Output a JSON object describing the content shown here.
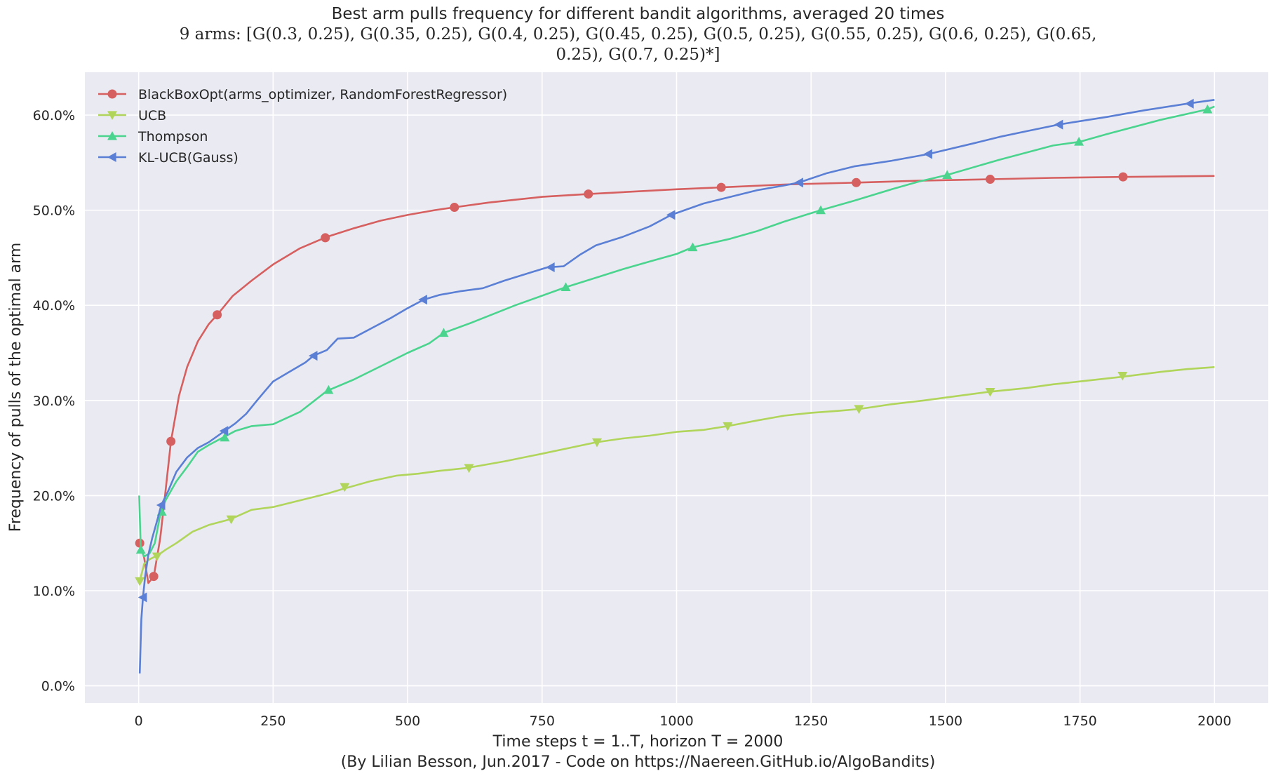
{
  "chart_data": {
    "type": "line",
    "title": "Best arm pulls frequency for different bandit algorithms, averaged 20 times",
    "subtitle_line1": "9 arms: [G(0.3, 0.25), G(0.35, 0.25), G(0.4, 0.25), G(0.45, 0.25), G(0.5, 0.25), G(0.55, 0.25), G(0.6, 0.25), G(0.65,",
    "subtitle_line2": "0.25), G(0.7, 0.25)*]",
    "xlabel": "Time steps t = 1..T, horizon T = 2000",
    "xlabel_line2": "(By Lilian Besson, Jun.2017 - Code on https://Naereen.GitHub.io/AlgoBandits)",
    "ylabel": "Frequency of pulls of the optimal arm",
    "xlim": [
      -100,
      2100
    ],
    "ylim": [
      -1.8,
      64.5
    ],
    "xticks": [
      0,
      250,
      500,
      750,
      1000,
      1250,
      1500,
      1750,
      2000
    ],
    "xtick_labels": [
      "0",
      "250",
      "500",
      "750",
      "1000",
      "1250",
      "1500",
      "1750",
      "2000"
    ],
    "yticks": [
      0,
      10,
      20,
      30,
      40,
      50,
      60
    ],
    "ytick_labels": [
      "0.0%",
      "10.0%",
      "20.0%",
      "30.0%",
      "40.0%",
      "50.0%",
      "60.0%"
    ],
    "grid": true,
    "legend_position": "top-left",
    "series": [
      {
        "name": "BlackBoxOpt(arms_optimizer, RandomForestRegressor)",
        "color": "#d65f5f",
        "marker": "circle",
        "points": [
          [
            2,
            15.0
          ],
          [
            10,
            13.5
          ],
          [
            18,
            10.8
          ],
          [
            28,
            11.5
          ],
          [
            40,
            15.5
          ],
          [
            50,
            20.5
          ],
          [
            60,
            25.7
          ],
          [
            75,
            30.5
          ],
          [
            90,
            33.5
          ],
          [
            110,
            36.2
          ],
          [
            130,
            38.0
          ],
          [
            146,
            39.0
          ],
          [
            175,
            41.0
          ],
          [
            210,
            42.6
          ],
          [
            250,
            44.3
          ],
          [
            300,
            46.0
          ],
          [
            350,
            47.2
          ],
          [
            400,
            48.1
          ],
          [
            450,
            48.9
          ],
          [
            500,
            49.5
          ],
          [
            550,
            50.0
          ],
          [
            587,
            50.3
          ],
          [
            650,
            50.8
          ],
          [
            700,
            51.1
          ],
          [
            750,
            51.4
          ],
          [
            836,
            51.7
          ],
          [
            900,
            51.9
          ],
          [
            1000,
            52.2
          ],
          [
            1083,
            52.4
          ],
          [
            1200,
            52.7
          ],
          [
            1300,
            52.85
          ],
          [
            1334,
            52.9
          ],
          [
            1450,
            53.1
          ],
          [
            1583,
            53.25
          ],
          [
            1700,
            53.4
          ],
          [
            1830,
            53.5
          ],
          [
            2000,
            53.6
          ]
        ],
        "markers": [
          [
            2,
            15.0
          ],
          [
            28,
            11.5
          ],
          [
            60,
            25.7
          ],
          [
            146,
            39.0
          ],
          [
            347,
            47.1
          ],
          [
            587,
            50.3
          ],
          [
            836,
            51.7
          ],
          [
            1083,
            52.4
          ],
          [
            1334,
            52.9
          ],
          [
            1583,
            53.25
          ],
          [
            1830,
            53.5
          ]
        ]
      },
      {
        "name": "UCB",
        "color": "#b0d55a",
        "marker": "triangle-down",
        "points": [
          [
            2,
            11.0
          ],
          [
            10,
            12.8
          ],
          [
            20,
            13.3
          ],
          [
            35,
            13.7
          ],
          [
            50,
            14.3
          ],
          [
            70,
            15.0
          ],
          [
            100,
            16.2
          ],
          [
            130,
            16.9
          ],
          [
            170,
            17.5
          ],
          [
            210,
            18.5
          ],
          [
            250,
            18.8
          ],
          [
            300,
            19.5
          ],
          [
            350,
            20.2
          ],
          [
            380,
            20.7
          ],
          [
            430,
            21.5
          ],
          [
            480,
            22.1
          ],
          [
            520,
            22.3
          ],
          [
            560,
            22.6
          ],
          [
            610,
            22.9
          ],
          [
            680,
            23.6
          ],
          [
            750,
            24.4
          ],
          [
            800,
            25.0
          ],
          [
            850,
            25.6
          ],
          [
            900,
            26.0
          ],
          [
            950,
            26.3
          ],
          [
            1000,
            26.7
          ],
          [
            1050,
            26.9
          ],
          [
            1095,
            27.3
          ],
          [
            1150,
            27.9
          ],
          [
            1200,
            28.4
          ],
          [
            1250,
            28.7
          ],
          [
            1300,
            28.9
          ],
          [
            1340,
            29.1
          ],
          [
            1400,
            29.6
          ],
          [
            1460,
            30.0
          ],
          [
            1500,
            30.3
          ],
          [
            1580,
            30.9
          ],
          [
            1650,
            31.3
          ],
          [
            1700,
            31.7
          ],
          [
            1750,
            32.0
          ],
          [
            1830,
            32.5
          ],
          [
            1900,
            33.0
          ],
          [
            1950,
            33.3
          ],
          [
            2000,
            33.5
          ]
        ],
        "markers": [
          [
            2,
            11.0
          ],
          [
            34,
            13.6
          ],
          [
            172,
            17.5
          ],
          [
            383,
            20.9
          ],
          [
            614,
            22.9
          ],
          [
            852,
            25.6
          ],
          [
            1095,
            27.3
          ],
          [
            1339,
            29.1
          ],
          [
            1583,
            30.9
          ],
          [
            1829,
            32.6
          ]
        ]
      },
      {
        "name": "Thompson",
        "color": "#4ad48e",
        "marker": "triangle-up",
        "points": [
          [
            1,
            20.0
          ],
          [
            4,
            14.3
          ],
          [
            10,
            13.6
          ],
          [
            20,
            13.9
          ],
          [
            30,
            15.0
          ],
          [
            40,
            18.0
          ],
          [
            50,
            19.5
          ],
          [
            70,
            21.5
          ],
          [
            90,
            23.0
          ],
          [
            110,
            24.6
          ],
          [
            130,
            25.3
          ],
          [
            160,
            26.2
          ],
          [
            180,
            26.8
          ],
          [
            210,
            27.3
          ],
          [
            250,
            27.5
          ],
          [
            300,
            28.8
          ],
          [
            350,
            31.0
          ],
          [
            400,
            32.2
          ],
          [
            450,
            33.6
          ],
          [
            500,
            35.0
          ],
          [
            540,
            36.0
          ],
          [
            567,
            37.1
          ],
          [
            620,
            38.2
          ],
          [
            700,
            40.0
          ],
          [
            794,
            41.9
          ],
          [
            850,
            42.9
          ],
          [
            900,
            43.8
          ],
          [
            950,
            44.6
          ],
          [
            1000,
            45.4
          ],
          [
            1030,
            46.1
          ],
          [
            1100,
            47.0
          ],
          [
            1150,
            47.8
          ],
          [
            1200,
            48.8
          ],
          [
            1268,
            50.0
          ],
          [
            1330,
            51.0
          ],
          [
            1400,
            52.2
          ],
          [
            1450,
            53.0
          ],
          [
            1503,
            53.7
          ],
          [
            1600,
            55.3
          ],
          [
            1700,
            56.8
          ],
          [
            1750,
            57.2
          ],
          [
            1800,
            58.0
          ],
          [
            1900,
            59.5
          ],
          [
            1987,
            60.6
          ],
          [
            2000,
            60.9
          ]
        ],
        "markers": [
          [
            4,
            14.3
          ],
          [
            43,
            18.3
          ],
          [
            160,
            26.1
          ],
          [
            353,
            31.1
          ],
          [
            567,
            37.1
          ],
          [
            794,
            41.9
          ],
          [
            1030,
            46.1
          ],
          [
            1268,
            50.0
          ],
          [
            1503,
            53.7
          ],
          [
            1748,
            57.2
          ],
          [
            1987,
            60.6
          ]
        ]
      },
      {
        "name": "KL-UCB(Gauss)",
        "color": "#5a7fd4",
        "marker": "triangle-left",
        "points": [
          [
            2,
            1.3
          ],
          [
            5,
            7.0
          ],
          [
            8,
            9.3
          ],
          [
            12,
            11.5
          ],
          [
            18,
            13.8
          ],
          [
            25,
            15.5
          ],
          [
            35,
            17.5
          ],
          [
            42,
            19.0
          ],
          [
            55,
            20.5
          ],
          [
            70,
            22.5
          ],
          [
            90,
            24.0
          ],
          [
            110,
            25.0
          ],
          [
            130,
            25.6
          ],
          [
            160,
            26.8
          ],
          [
            180,
            27.6
          ],
          [
            200,
            28.6
          ],
          [
            220,
            30.0
          ],
          [
            250,
            32.0
          ],
          [
            280,
            33.0
          ],
          [
            310,
            34.0
          ],
          [
            325,
            34.7
          ],
          [
            350,
            35.3
          ],
          [
            370,
            36.5
          ],
          [
            400,
            36.6
          ],
          [
            440,
            37.8
          ],
          [
            470,
            38.7
          ],
          [
            500,
            39.7
          ],
          [
            530,
            40.6
          ],
          [
            560,
            41.1
          ],
          [
            600,
            41.5
          ],
          [
            640,
            41.8
          ],
          [
            680,
            42.6
          ],
          [
            720,
            43.3
          ],
          [
            760,
            44.0
          ],
          [
            790,
            44.1
          ],
          [
            820,
            45.3
          ],
          [
            850,
            46.3
          ],
          [
            900,
            47.2
          ],
          [
            950,
            48.3
          ],
          [
            990,
            49.5
          ],
          [
            1050,
            50.7
          ],
          [
            1100,
            51.4
          ],
          [
            1150,
            52.1
          ],
          [
            1200,
            52.6
          ],
          [
            1227,
            52.9
          ],
          [
            1280,
            53.9
          ],
          [
            1330,
            54.6
          ],
          [
            1400,
            55.2
          ],
          [
            1468,
            55.9
          ],
          [
            1550,
            57.0
          ],
          [
            1600,
            57.7
          ],
          [
            1650,
            58.3
          ],
          [
            1710,
            59.0
          ],
          [
            1800,
            59.8
          ],
          [
            1870,
            60.5
          ],
          [
            1950,
            61.2
          ],
          [
            2000,
            61.6
          ]
        ],
        "markers": [
          [
            8,
            9.3
          ],
          [
            42,
            19.0
          ],
          [
            159,
            26.8
          ],
          [
            325,
            34.7
          ],
          [
            529,
            40.6
          ],
          [
            766,
            44.0
          ],
          [
            990,
            49.5
          ],
          [
            1228,
            52.9
          ],
          [
            1468,
            55.9
          ],
          [
            1711,
            59.0
          ],
          [
            1954,
            61.2
          ]
        ]
      }
    ]
  }
}
